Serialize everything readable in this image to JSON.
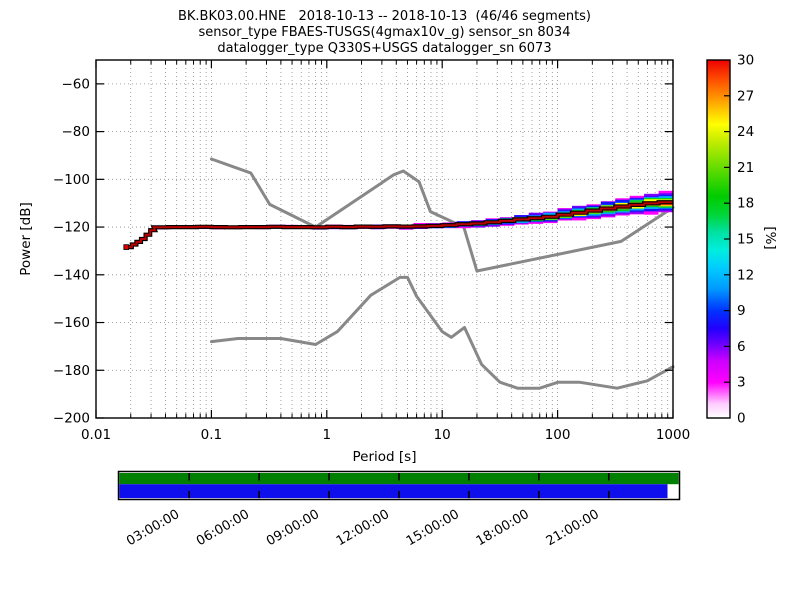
{
  "chart_data": {
    "type": "line",
    "title": "BK.BK03.00.HNE   2018-10-13 -- 2018-10-13  (46/46 segments)",
    "subtitle1": "sensor_type FBAES-TUSGS(4gmax10v_g) sensor_sn 8034",
    "subtitle2": "datalogger_type Q330S+USGS datalogger_sn 6073",
    "xlabel": "Period [s]",
    "ylabel": "Power [dB]",
    "xscale": "log",
    "xlim": [
      0.01,
      1000
    ],
    "ylim": [
      -200,
      -50
    ],
    "grid": true,
    "x_ticks": [
      {
        "log10": -2,
        "label": "0.01"
      },
      {
        "log10": -1,
        "label": "0.1"
      },
      {
        "log10": 0,
        "label": "1"
      },
      {
        "log10": 1,
        "label": "10"
      },
      {
        "log10": 2,
        "label": "100"
      },
      {
        "log10": 3,
        "label": "1000"
      }
    ],
    "y_ticks": [
      {
        "value": -60,
        "label": "−60"
      },
      {
        "value": -80,
        "label": "−80"
      },
      {
        "value": -100,
        "label": "−100"
      },
      {
        "value": -120,
        "label": "−120"
      },
      {
        "value": -140,
        "label": "−140"
      },
      {
        "value": -160,
        "label": "−160"
      },
      {
        "value": -180,
        "label": "−180"
      },
      {
        "value": -200,
        "label": "−200"
      }
    ],
    "noise_models": {
      "color": "#888888",
      "nhnm": [
        [
          0.1,
          -91.5
        ],
        [
          0.22,
          -97.4
        ],
        [
          0.32,
          -110.5
        ],
        [
          0.8,
          -120.0
        ],
        [
          3.8,
          -98.1
        ],
        [
          4.6,
          -96.5
        ],
        [
          6.3,
          -101.0
        ],
        [
          7.9,
          -113.5
        ],
        [
          15.4,
          -120.0
        ],
        [
          20.0,
          -138.4
        ],
        [
          354.8,
          -126.0
        ],
        [
          1000,
          -111.8
        ]
      ],
      "nlnm": [
        [
          0.1,
          -168.0
        ],
        [
          0.17,
          -166.7
        ],
        [
          0.4,
          -166.7
        ],
        [
          0.8,
          -169.2
        ],
        [
          1.24,
          -163.7
        ],
        [
          2.4,
          -148.6
        ],
        [
          4.3,
          -141.1
        ],
        [
          5.0,
          -141.1
        ],
        [
          6.0,
          -149.0
        ],
        [
          10.0,
          -163.8
        ],
        [
          12.0,
          -166.2
        ],
        [
          15.6,
          -162.1
        ],
        [
          21.9,
          -177.5
        ],
        [
          31.6,
          -185.0
        ],
        [
          45.0,
          -187.5
        ],
        [
          70.0,
          -187.5
        ],
        [
          101.0,
          -185.0
        ],
        [
          154.0,
          -185.0
        ],
        [
          328.0,
          -187.5
        ],
        [
          600.0,
          -184.4
        ],
        [
          1000,
          -178.5
        ]
      ]
    },
    "psd": {
      "mode_color": "#000000",
      "core_color": "#bb0000",
      "layers": [
        {
          "color": "#ff00ff",
          "f": 1.0
        },
        {
          "color": "#7d00ff",
          "f": 0.86
        },
        {
          "color": "#1414ff",
          "f": 0.72
        },
        {
          "color": "#00aaff",
          "f": 0.58
        },
        {
          "color": "#00cc22",
          "f": 0.45
        },
        {
          "color": "#ffff00",
          "f": 0.32
        },
        {
          "color": "#ff8800",
          "f": 0.22
        },
        {
          "color": "#ee0000",
          "f": 0.14
        }
      ],
      "bins": [
        [
          -1.73,
          0.04,
          -128.4,
          0.3
        ],
        [
          -1.69,
          0.04,
          -127.3,
          0.3
        ],
        [
          -1.65,
          0.04,
          -126.2,
          0.3
        ],
        [
          -1.61,
          0.04,
          -125.0,
          0.3
        ],
        [
          -1.57,
          0.04,
          -123.2,
          0.3
        ],
        [
          -1.53,
          0.04,
          -121.3,
          0.3
        ],
        [
          -1.5,
          0.125,
          -120.1,
          0.5
        ],
        [
          -1.375,
          0.125,
          -120,
          0.5
        ],
        [
          -1.25,
          0.125,
          -120,
          0.5
        ],
        [
          -1.125,
          0.125,
          -119.9,
          0.55
        ],
        [
          -1.0,
          0.125,
          -120,
          0.5
        ],
        [
          -0.875,
          0.125,
          -120.1,
          0.5
        ],
        [
          -0.75,
          0.125,
          -120,
          0.55
        ],
        [
          -0.625,
          0.125,
          -120,
          0.5
        ],
        [
          -0.5,
          0.125,
          -119.9,
          0.6
        ],
        [
          -0.375,
          0.125,
          -120,
          0.55
        ],
        [
          -0.25,
          0.125,
          -120,
          0.6
        ],
        [
          -0.125,
          0.125,
          -120.1,
          0.65
        ],
        [
          0,
          0.125,
          -119.9,
          0.7
        ],
        [
          0.125,
          0.125,
          -120,
          0.7
        ],
        [
          0.25,
          0.125,
          -119.8,
          0.75
        ],
        [
          0.375,
          0.125,
          -119.9,
          0.8
        ],
        [
          0.5,
          0.125,
          -119.7,
          0.85
        ],
        [
          0.625,
          0.125,
          -119.8,
          0.9
        ],
        [
          0.75,
          0.125,
          -119.7,
          1.0
        ],
        [
          0.875,
          0.125,
          -119.5,
          1.1
        ],
        [
          1.0,
          0.125,
          -119.2,
          1.2
        ],
        [
          1.125,
          0.125,
          -118.8,
          1.35
        ],
        [
          1.25,
          0.125,
          -118.5,
          1.5
        ],
        [
          1.375,
          0.125,
          -118.0,
          1.65
        ],
        [
          1.5,
          0.125,
          -117.4,
          1.8
        ],
        [
          1.625,
          0.125,
          -116.8,
          2.0
        ],
        [
          1.75,
          0.125,
          -116.3,
          2.2
        ],
        [
          1.875,
          0.125,
          -115.7,
          2.4
        ],
        [
          2.0,
          0.125,
          -114.8,
          2.6
        ],
        [
          2.125,
          0.125,
          -114.0,
          2.9
        ],
        [
          2.25,
          0.125,
          -113.1,
          3.1
        ],
        [
          2.375,
          0.125,
          -112.2,
          3.4
        ],
        [
          2.5,
          0.125,
          -111.4,
          3.6
        ],
        [
          2.625,
          0.125,
          -110.7,
          3.9
        ],
        [
          2.75,
          0.125,
          -110.1,
          4.3
        ],
        [
          2.875,
          0.125,
          -109.6,
          4.5
        ]
      ]
    },
    "colorbar": {
      "label": "[%]",
      "min": 0,
      "max": 30,
      "tick_step": 3,
      "tick_labels": [
        "0",
        "3",
        "6",
        "9",
        "12",
        "15",
        "18",
        "21",
        "24",
        "27",
        "30"
      ],
      "stops": [
        [
          0.0,
          "#ffffff"
        ],
        [
          0.04,
          "#ffccff"
        ],
        [
          0.1,
          "#ff00ff"
        ],
        [
          0.16,
          "#cc00ff"
        ],
        [
          0.21,
          "#6600ff"
        ],
        [
          0.25,
          "#2200ff"
        ],
        [
          0.3,
          "#0033ff"
        ],
        [
          0.36,
          "#0099ff"
        ],
        [
          0.42,
          "#00ccff"
        ],
        [
          0.47,
          "#00eedd"
        ],
        [
          0.52,
          "#00e0a0"
        ],
        [
          0.57,
          "#00d535"
        ],
        [
          0.62,
          "#00cc00"
        ],
        [
          0.7,
          "#66dd00"
        ],
        [
          0.78,
          "#ccee00"
        ],
        [
          0.82,
          "#ffff00"
        ],
        [
          0.88,
          "#ffaa00"
        ],
        [
          0.94,
          "#ff5500"
        ],
        [
          1.0,
          "#ee0000"
        ]
      ]
    },
    "timeline": {
      "hours_total": 24,
      "green_color": "#008000",
      "blue_color": "#0f0fee",
      "green_coverage_fraction": 1.0,
      "blue_coverage_fraction": 0.98,
      "tick_hours": [
        3,
        6,
        9,
        12,
        15,
        18,
        21
      ],
      "tick_labels": [
        "03:00:00",
        "06:00:00",
        "09:00:00",
        "12:00:00",
        "15:00:00",
        "18:00:00",
        "21:00:00"
      ]
    }
  }
}
